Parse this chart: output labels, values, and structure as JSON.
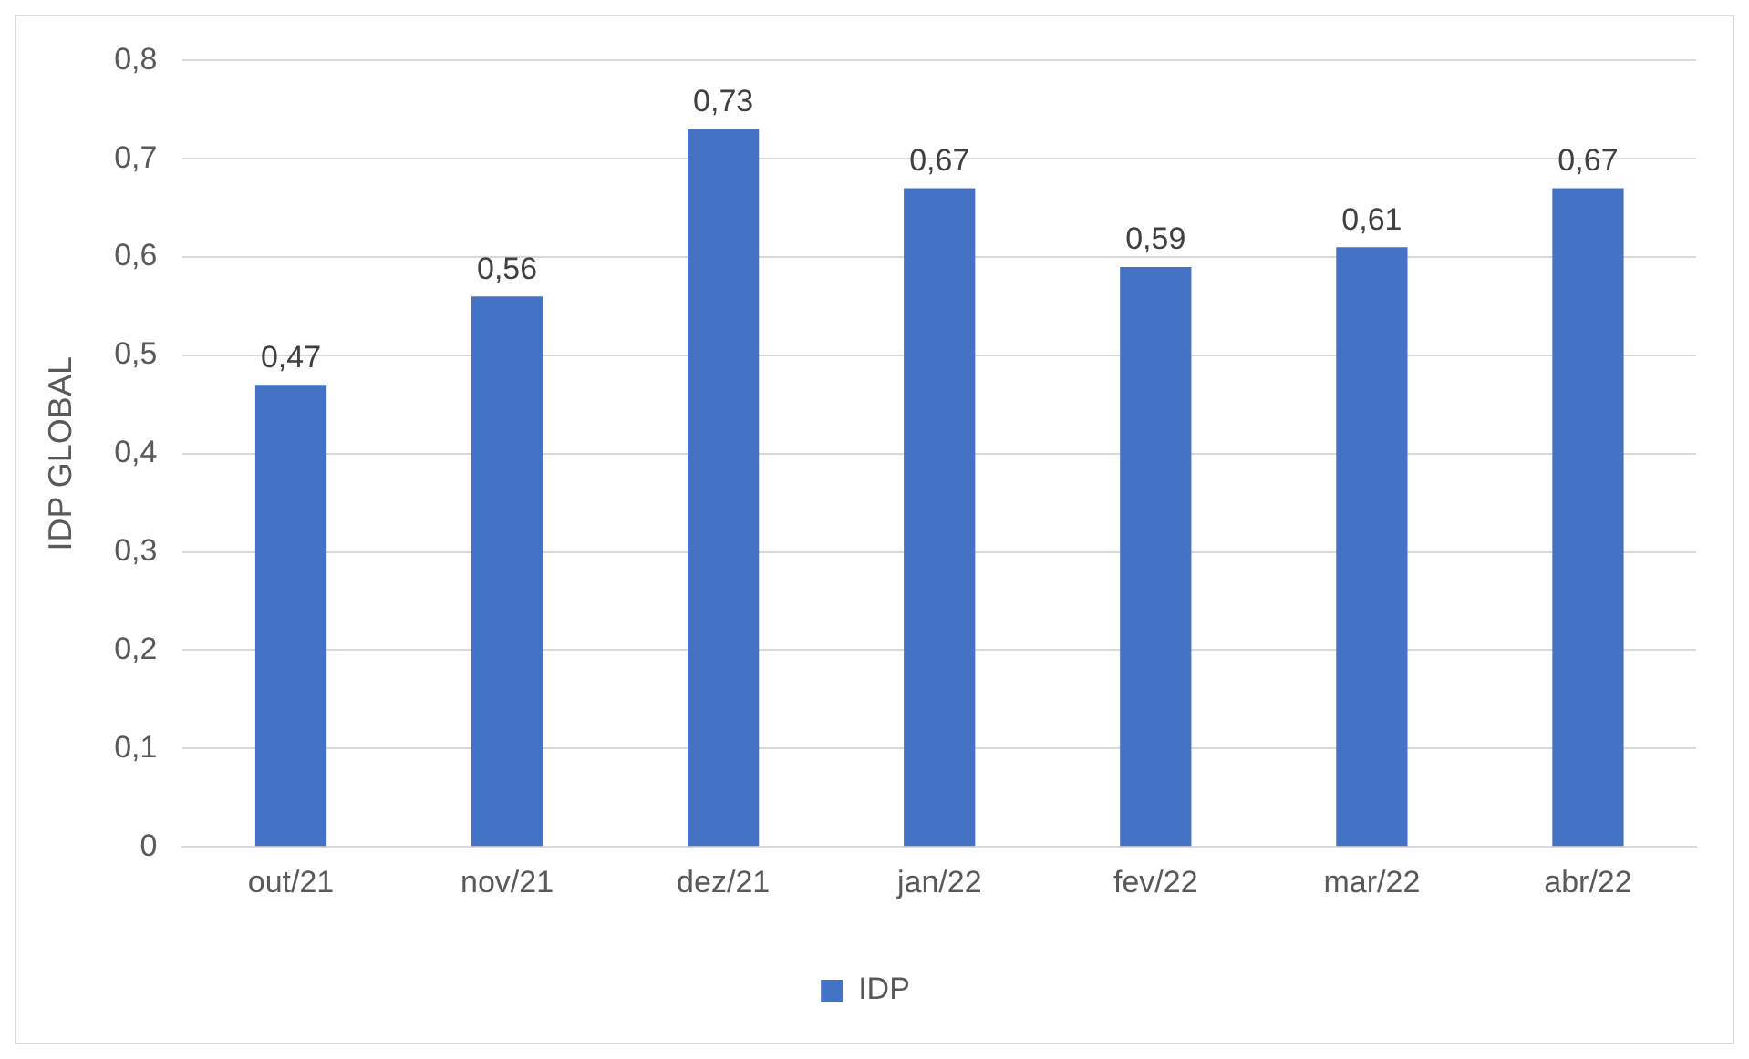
{
  "chart_data": {
    "type": "bar",
    "ylabel": "IDP GLOBAL",
    "categories": [
      "out/21",
      "nov/21",
      "dez/21",
      "jan/22",
      "fev/22",
      "mar/22",
      "abr/22"
    ],
    "series": [
      {
        "name": "IDP",
        "color": "#4472c4",
        "values": [
          0.47,
          0.56,
          0.73,
          0.67,
          0.59,
          0.61,
          0.67
        ],
        "value_labels": [
          "0,47",
          "0,56",
          "0,73",
          "0,67",
          "0,59",
          "0,61",
          "0,67"
        ]
      }
    ],
    "ylim": [
      0,
      0.8
    ],
    "yticks": [
      0,
      {
        "value": 0.1,
        "label": "0,1"
      },
      {
        "value": 0.2,
        "label": "0,2"
      },
      {
        "value": 0.3,
        "label": "0,3"
      },
      {
        "value": 0.4,
        "label": "0,4"
      },
      {
        "value": 0.5,
        "label": "0,5"
      },
      {
        "value": 0.6,
        "label": "0,6"
      },
      {
        "value": 0.7,
        "label": "0,7"
      },
      {
        "value": 0.8,
        "label": "0,8"
      }
    ],
    "grid": "y",
    "legend": "bottom"
  }
}
